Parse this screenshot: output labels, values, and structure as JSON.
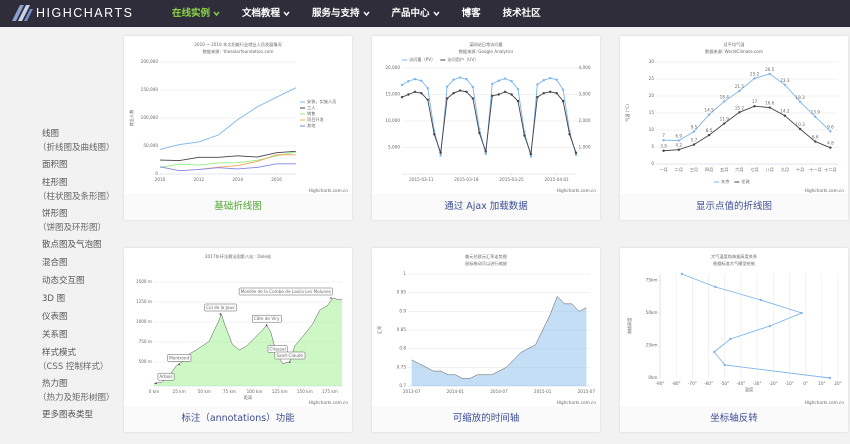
{
  "logo": "HIGHCHARTS",
  "nav": {
    "items": [
      {
        "label": "在线实例",
        "dropdown": true,
        "active": true
      },
      {
        "label": "文档教程",
        "dropdown": true
      },
      {
        "label": "服务与支持",
        "dropdown": true
      },
      {
        "label": "产品中心",
        "dropdown": true
      },
      {
        "label": "博客"
      },
      {
        "label": "技术社区"
      }
    ]
  },
  "sidebar": {
    "items": [
      {
        "label": "线图",
        "sub": "（折线图及曲线图）"
      },
      {
        "label": "面积图"
      },
      {
        "label": "柱形图",
        "sub": "（柱状图及条形图）"
      },
      {
        "label": "饼形图",
        "sub": "（饼图及环形图）"
      },
      {
        "label": "散点图及气泡图"
      },
      {
        "label": "混合图"
      },
      {
        "label": "动态交互图"
      },
      {
        "label": "3D 图"
      },
      {
        "label": "仪表图"
      },
      {
        "label": "关系图"
      },
      {
        "label": "样式模式",
        "sub": "（CSS 控制样式）"
      },
      {
        "label": "热力图",
        "sub": "（热力及矩形树图）"
      },
      {
        "label": "更多图表类型"
      }
    ]
  },
  "credits": "Highcharts.com.cn",
  "cards": [
    {
      "caption": "基础折线图",
      "chart": {
        "type": "line",
        "title": "2010 ~ 2016 年太阳能行业就业人员发展情况",
        "subtitle": "数据来源：thesolarfoundation.com",
        "y_title": "就业人数",
        "legend": "right",
        "x": [
          2010,
          2011,
          2012,
          2013,
          2014,
          2015,
          2016,
          2017
        ],
        "xlim": [
          2010,
          2017
        ],
        "xticks": [
          2010,
          2012,
          2014,
          2016
        ],
        "ylim": [
          0,
          200000
        ],
        "yticks": [
          0,
          {
            "value": 50000,
            "label": "50,000"
          },
          {
            "value": 100000,
            "label": "100,000"
          },
          {
            "value": 150000,
            "label": "150,000"
          },
          {
            "value": 200000,
            "label": "200,000"
          }
        ],
        "series": [
          {
            "name": "安装，实施人员",
            "color": "#7cb5ec",
            "values": [
              43934,
              52503,
              57177,
              69658,
              97031,
              119931,
              137133,
              154175
            ]
          },
          {
            "name": "工人",
            "color": "#434348",
            "values": [
              24916,
              24064,
              29742,
              29851,
              32490,
              30282,
              38121,
              40434
            ]
          },
          {
            "name": "销售",
            "color": "#90ed7d",
            "values": [
              11744,
              17722,
              16005,
              19771,
              20185,
              24377,
              32147,
              39387
            ]
          },
          {
            "name": "项目开发",
            "color": "#f7a35c",
            "values": [
              null,
              null,
              7988,
              12169,
              15112,
              22452,
              34400,
              34227
            ]
          },
          {
            "name": "其他",
            "color": "#8085e9",
            "values": [
              12908,
              5948,
              8105,
              11248,
              8989,
              11816,
              18274,
              18111
            ]
          }
        ]
      }
    },
    {
      "caption": "通过 Ajax 加载数据",
      "chart": {
        "type": "line",
        "title": "某网站日常访问量",
        "subtitle": "数据来源: Google Analytics",
        "legend": "top",
        "markers": true,
        "x": [
          0,
          1,
          2,
          3,
          4,
          5,
          6,
          7,
          8,
          9,
          10,
          11,
          12,
          13,
          14,
          15,
          16,
          17,
          18,
          19,
          20,
          21,
          22,
          23,
          24,
          25,
          26,
          27
        ],
        "xlim": [
          0,
          27
        ],
        "xticks": [
          {
            "value": 3,
            "label": "2015-03-11"
          },
          {
            "value": 10,
            "label": "2015-03-18"
          },
          {
            "value": 17,
            "label": "2015-03-25"
          },
          {
            "value": 24,
            "label": "2015-04-01"
          }
        ],
        "ylim": [
          0,
          20000
        ],
        "yticks": [
          {
            "value": 5000,
            "label": "5,000"
          },
          {
            "value": 10000,
            "label": "10,000"
          },
          {
            "value": 15000,
            "label": "15,000"
          },
          {
            "value": 20000,
            "label": "20,000"
          }
        ],
        "y2lim": [
          0,
          4000
        ],
        "y2ticks": [
          {
            "value": 1000,
            "label": "1,000"
          },
          {
            "value": 2000,
            "label": "2,000"
          },
          {
            "value": 3000,
            "label": "3,000"
          },
          {
            "value": 4000,
            "label": "4,000"
          }
        ],
        "series": [
          {
            "name": "访问量（PV）",
            "color": "#7cb5ec",
            "values": [
              16800,
              17500,
              17900,
              17600,
              16200,
              8200,
              3500,
              16500,
              17800,
              18200,
              17900,
              16400,
              8500,
              3800,
              17000,
              17600,
              18000,
              17500,
              16000,
              7900,
              3300,
              16900,
              17700,
              18100,
              17800,
              15900,
              8100,
              3600
            ]
          },
          {
            "name": "访问用户（UV）",
            "color": "#434348",
            "axis": "y2",
            "values": [
              2900,
              3000,
              3100,
              3050,
              2800,
              1500,
              800,
              2850,
              3050,
              3150,
              3100,
              2850,
              1550,
              850,
              2950,
              3000,
              3100,
              3000,
              2750,
              1450,
              750,
              2900,
              3050,
              3100,
              3050,
              2750,
              1500,
              800
            ]
          }
        ]
      }
    },
    {
      "caption": "显示点值的折线图",
      "chart": {
        "type": "line",
        "title": "月平均气温",
        "subtitle": "数据来源: WorldClimate.com",
        "y_title": "气温 (°C)",
        "legend": "bottom",
        "markers": true,
        "data_labels": true,
        "categories": [
          "一月",
          "二月",
          "三月",
          "四月",
          "五月",
          "六月",
          "七月",
          "八月",
          "九月",
          "十月",
          "十一月",
          "十二月"
        ],
        "ylim": [
          0,
          30
        ],
        "yticks": [
          0,
          5,
          10,
          15,
          20,
          25,
          30
        ],
        "series": [
          {
            "name": "东京",
            "color": "#7cb5ec",
            "values": [
              7,
              6.9,
              9.5,
              14.5,
              18.4,
              21.5,
              25.2,
              26.5,
              23.3,
              18.3,
              13.9,
              9.6
            ]
          },
          {
            "name": "伦敦",
            "color": "#434348",
            "values": [
              3.9,
              4.2,
              5.7,
              8.5,
              11.9,
              15.2,
              17,
              16.6,
              14.2,
              10.3,
              6.6,
              4.8
            ]
          }
        ]
      }
    },
    {
      "caption": "标注（annotations）功能",
      "chart": {
        "type": "area",
        "title": "2017年环法赛法国第八站：Dole站",
        "x_title": "距离",
        "xlim": [
          0,
          187
        ],
        "xticks": [
          {
            "value": 0,
            "label": "0 km"
          },
          {
            "value": 25,
            "label": "25 km"
          },
          {
            "value": 50,
            "label": "50 km"
          },
          {
            "value": 75,
            "label": "75 km"
          },
          {
            "value": 100,
            "label": "100 km"
          },
          {
            "value": 125,
            "label": "125 km"
          },
          {
            "value": 150,
            "label": "150 km"
          },
          {
            "value": 175,
            "label": "175 km"
          }
        ],
        "ylim": [
          200,
          1600
        ],
        "yticks": [
          {
            "value": 500,
            "label": "500 m"
          },
          {
            "value": 750,
            "label": "750 m"
          },
          {
            "value": 1000,
            "label": "1000 m"
          },
          {
            "value": 1250,
            "label": "1250 m"
          },
          {
            "value": 1500,
            "label": "1500 m"
          }
        ],
        "series": [
          {
            "color": "#90ed7d",
            "x": [
              0,
              8,
              15,
              22,
              30,
              35,
              42,
              48,
              55,
              60,
              64,
              67,
              70,
              78,
              85,
              92,
              100,
              108,
              112,
              116,
              122,
              128,
              135,
              140,
              150,
              158,
              165,
              172,
              178,
              183,
              187
            ],
            "values": [
              230,
              250,
              330,
              450,
              520,
              600,
              650,
              700,
              760,
              900,
              1000,
              1100,
              980,
              720,
              650,
              700,
              800,
              900,
              960,
              880,
              600,
              480,
              500,
              700,
              850,
              980,
              1150,
              1200,
              1300,
              1280,
              1280
            ]
          }
        ],
        "annotations": [
          {
            "text": "Arbois",
            "x": 2,
            "y": 235
          },
          {
            "text": "Montrond",
            "x": 25,
            "y": 470
          },
          {
            "text": "Col de la Joux",
            "x": 66,
            "y": 1100
          },
          {
            "text": "Côte de Viry",
            "x": 112,
            "y": 960
          },
          {
            "text": "Chassal",
            "x": 123,
            "y": 580
          },
          {
            "text": "Saint-Claude",
            "x": 135,
            "y": 500
          },
          {
            "text": "Montée de la Combe de Laisia Les Molunes",
            "x": 176,
            "y": 1300
          }
        ]
      }
    },
    {
      "caption": "可缩放的时间轴",
      "chart": {
        "type": "area",
        "title": "美元兑欧元汇率走势图",
        "subtitle": "鼠标拖动可以进行缩放",
        "y_title": "汇率",
        "categories": [
          "2013-07",
          null,
          null,
          null,
          null,
          null,
          "2014-01",
          null,
          null,
          null,
          null,
          null,
          "2014-07",
          null,
          null,
          null,
          null,
          null,
          "2015-01",
          null,
          null,
          null,
          null,
          null,
          "2015-07"
        ],
        "ylim": [
          0.7,
          1
        ],
        "yticks": [
          0.7,
          0.75,
          0.8,
          0.85,
          0.9,
          0.95,
          1
        ],
        "series": [
          {
            "color": "#7cb5ec",
            "values": [
              0.77,
              0.76,
              0.75,
              0.74,
              0.74,
              0.73,
              0.73,
              0.72,
              0.72,
              0.73,
              0.73,
              0.73,
              0.74,
              0.75,
              0.77,
              0.79,
              0.8,
              0.81,
              0.85,
              0.89,
              0.94,
              0.92,
              0.92,
              0.9,
              0.91
            ]
          }
        ]
      }
    },
    {
      "caption": "坐标轴反转",
      "chart": {
        "type": "line",
        "title": "大气温度和海拔高度关系",
        "subtitle": "根据标准大气模型绘制",
        "inverted": true,
        "markers": true,
        "x_title": "海拔高度",
        "y_title": "温度",
        "xlim": [
          0,
          80
        ],
        "xticks": [
          {
            "value": 0,
            "label": "0km"
          },
          {
            "value": 25,
            "label": "25km"
          },
          {
            "value": 50,
            "label": "50km"
          },
          {
            "value": 75,
            "label": "75km"
          }
        ],
        "ylim": [
          -90,
          20
        ],
        "yticks": [
          {
            "value": -90,
            "label": "-90°"
          },
          {
            "value": -80,
            "label": "-80°"
          },
          {
            "value": -70,
            "label": "-70°"
          },
          {
            "value": -60,
            "label": "-60°"
          },
          {
            "value": -50,
            "label": "-50°"
          },
          {
            "value": -40,
            "label": "-40°"
          },
          {
            "value": -30,
            "label": "-30°"
          },
          {
            "value": -20,
            "label": "-20°"
          },
          {
            "value": -10,
            "label": "-10°"
          },
          {
            "value": 0,
            "label": "0°"
          },
          {
            "value": 10,
            "label": "10°"
          },
          {
            "value": 20,
            "label": "20°"
          }
        ],
        "series": [
          {
            "color": "#7cb5ec",
            "x": [
              0,
              10,
              20,
              30,
              40,
              50,
              60,
              70,
              80
            ],
            "values": [
              15,
              -50,
              -56.5,
              -46.5,
              -22.1,
              -2.5,
              -27.7,
              -55.7,
              -76.5
            ]
          }
        ]
      }
    }
  ]
}
